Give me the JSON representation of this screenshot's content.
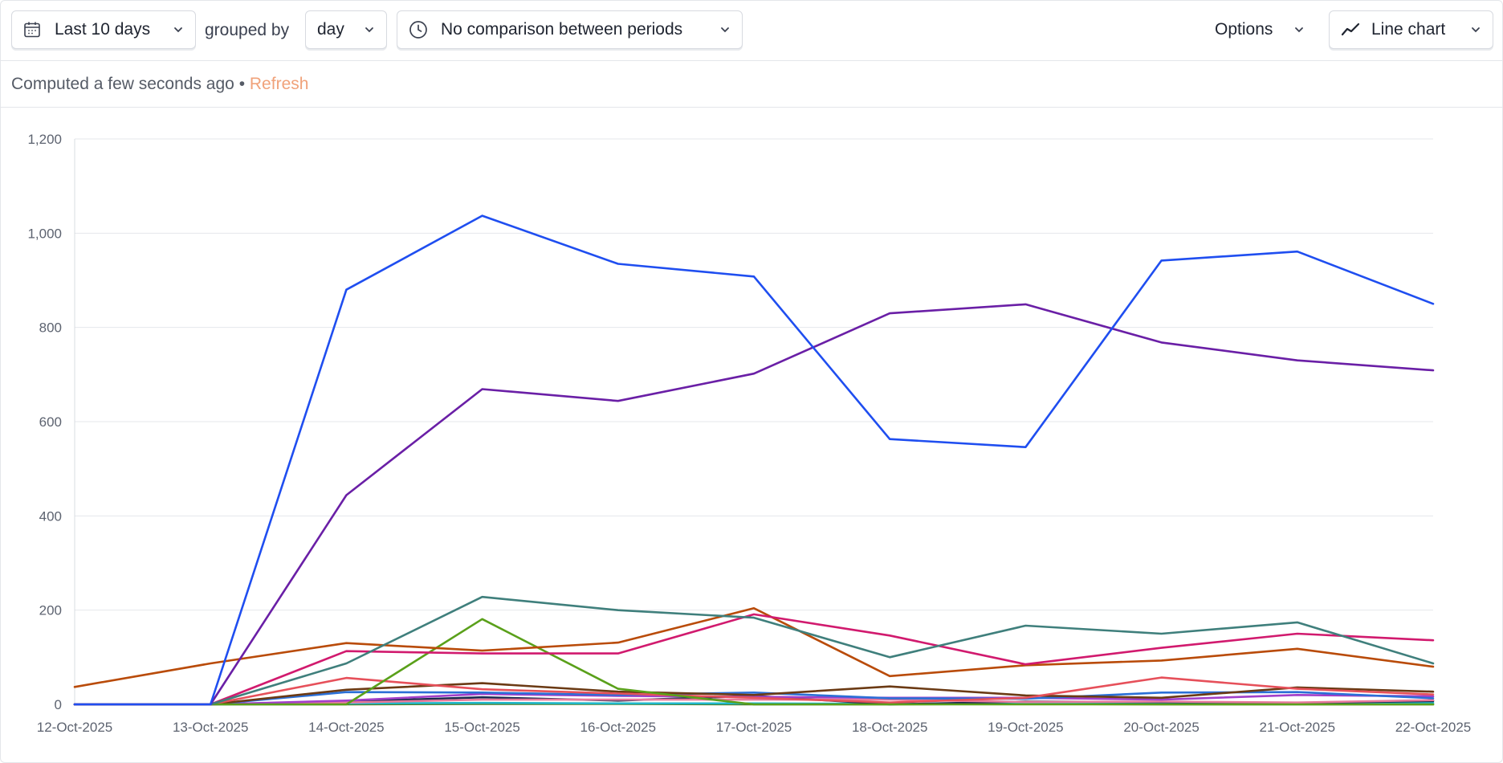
{
  "toolbar": {
    "date_range_label": "Last 10 days",
    "grouped_by_label": "grouped by",
    "interval_label": "day",
    "comparison_label": "No comparison between periods",
    "options_label": "Options",
    "chart_type_label": "Line chart",
    "icons": [
      "calendar-icon",
      "clock-icon",
      "chevron-down-icon",
      "line-chart-icon"
    ]
  },
  "status": {
    "computed_text": "Computed a few seconds ago",
    "separator": "•",
    "refresh_label": "Refresh"
  },
  "chart_data": {
    "type": "line",
    "categories": [
      "12-Oct-2025",
      "13-Oct-2025",
      "14-Oct-2025",
      "15-Oct-2025",
      "16-Oct-2025",
      "17-Oct-2025",
      "18-Oct-2025",
      "19-Oct-2025",
      "20-Oct-2025",
      "21-Oct-2025",
      "22-Oct-2025"
    ],
    "ylim": [
      0,
      1200
    ],
    "yticks": [
      0,
      200,
      400,
      600,
      800,
      1000,
      1200
    ],
    "grid": true,
    "series": [
      {
        "color": "#1f4ef0",
        "values": [
          0,
          0,
          880,
          1037,
          935,
          908,
          563,
          546,
          942,
          961,
          850
        ]
      },
      {
        "color": "#6a1fa6",
        "values": [
          0,
          0,
          444,
          669,
          644,
          702,
          830,
          849,
          768,
          730,
          709
        ]
      },
      {
        "color": "#3f7f7c",
        "values": [
          0,
          0,
          87,
          228,
          200,
          184,
          100,
          167,
          150,
          174,
          87
        ]
      },
      {
        "color": "#d11a6e",
        "values": [
          0,
          0,
          113,
          108,
          108,
          191,
          146,
          85,
          120,
          150,
          136
        ]
      },
      {
        "color": "#b94b09",
        "values": [
          37,
          87,
          130,
          114,
          131,
          204,
          60,
          83,
          93,
          118,
          80
        ]
      },
      {
        "color": "#5aa01a",
        "values": [
          0,
          0,
          0,
          181,
          33,
          0,
          0,
          0,
          0,
          0,
          0
        ]
      },
      {
        "color": "#e6505a",
        "values": [
          0,
          0,
          56,
          32,
          23,
          14,
          4,
          14,
          57,
          33,
          21
        ]
      },
      {
        "color": "#6b3a14",
        "values": [
          0,
          0,
          31,
          45,
          27,
          20,
          38,
          19,
          14,
          36,
          27
        ]
      },
      {
        "color": "#2b6fd6",
        "values": [
          0,
          0,
          26,
          25,
          20,
          25,
          13,
          12,
          25,
          26,
          13
        ]
      },
      {
        "color": "#a23fc9",
        "values": [
          0,
          0,
          8,
          22,
          18,
          16,
          14,
          14,
          10,
          20,
          17
        ]
      },
      {
        "color": "#e87a9b",
        "values": [
          0,
          0,
          4,
          10,
          10,
          10,
          10,
          5,
          6,
          4,
          9
        ]
      },
      {
        "color": "#1a2a4f",
        "values": [
          0,
          0,
          6,
          15,
          8,
          18,
          0,
          6,
          5,
          3,
          7
        ]
      },
      {
        "color": "#1fb7c9",
        "values": [
          0,
          0,
          2,
          3,
          2,
          2,
          1,
          2,
          2,
          3,
          3
        ]
      },
      {
        "color": "#4d7a1a",
        "values": [
          0,
          0,
          0,
          1,
          1,
          0,
          0,
          1,
          0,
          0,
          0
        ]
      }
    ]
  }
}
